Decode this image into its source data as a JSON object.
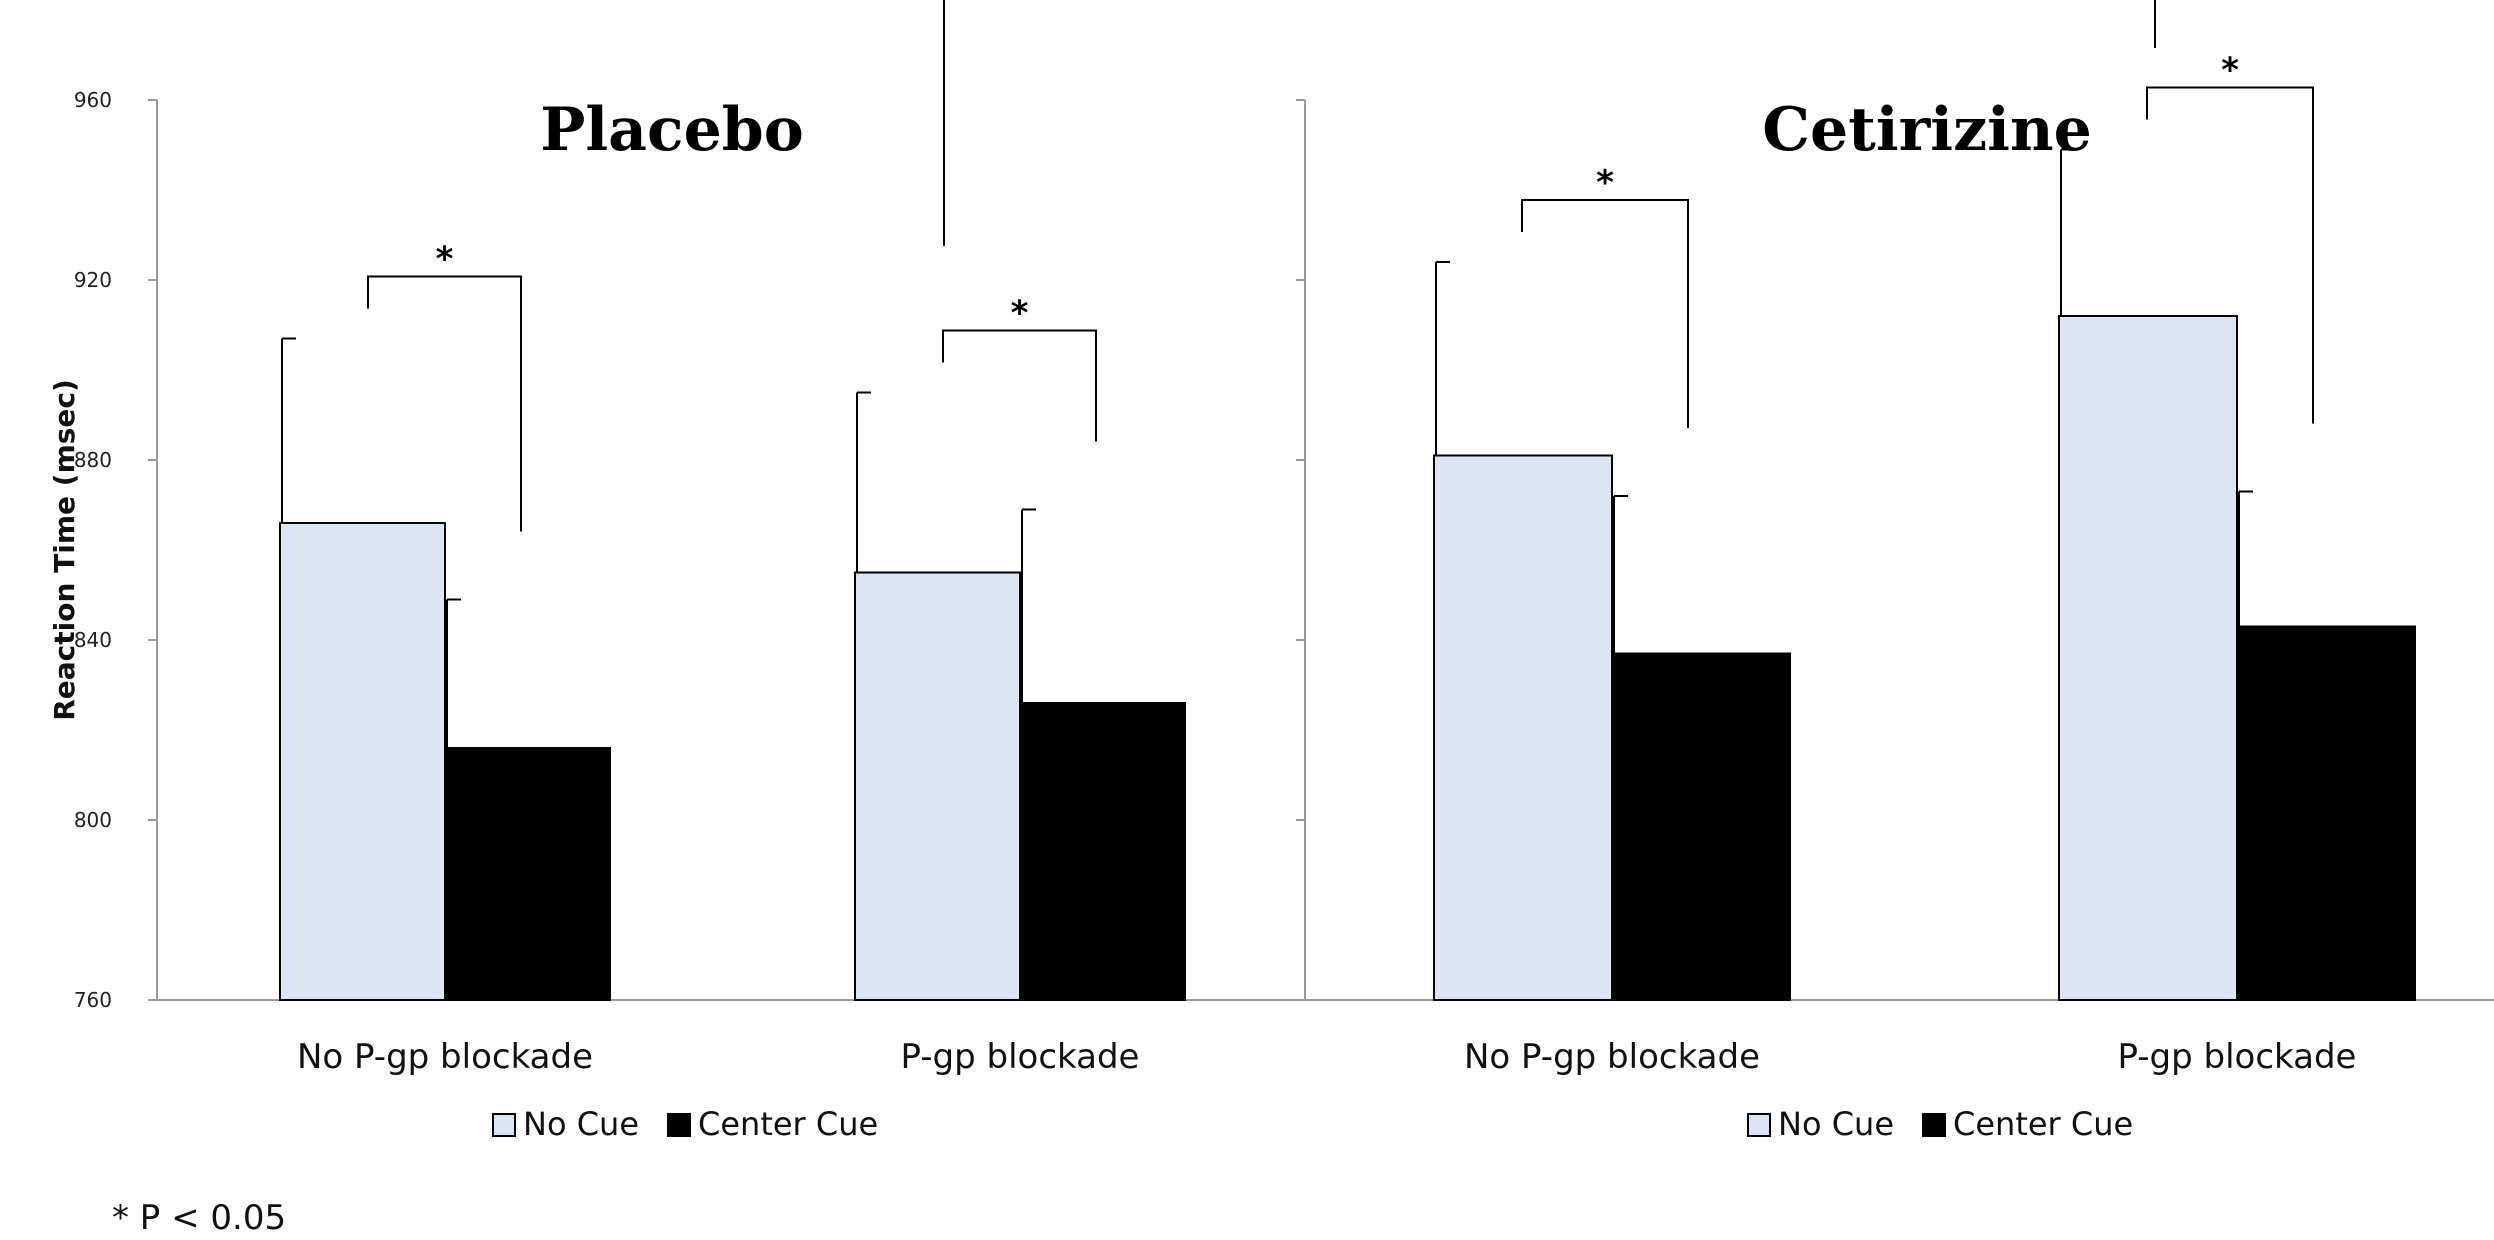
{
  "chart_data": {
    "type": "bar",
    "ylabel": "Reaction Time (msec)",
    "ylim": [
      760,
      960
    ],
    "yticks": [
      "760",
      "800",
      "840",
      "880",
      "920",
      "960"
    ],
    "grid": false,
    "colors": {
      "No Cue": "#dce6f2",
      "Center Cue": "#000000"
    },
    "panels": [
      {
        "title": "Placebo",
        "categories": [
          "No P-gp blockade",
          "P-gp blockade"
        ],
        "legend": [
          "No Cue",
          "Center Cue"
        ],
        "series": [
          {
            "name": "No Cue",
            "values": [
              866,
              855
            ],
            "error": [
              41,
              40
            ]
          },
          {
            "name": "Center Cue",
            "values": [
              816,
              826
            ],
            "error": [
              33,
              43
            ]
          }
        ],
        "significance": [
          "*",
          "*"
        ]
      },
      {
        "title": "Cetirizine",
        "categories": [
          "No P-gp blockade",
          "P-gp blockade"
        ],
        "legend": [
          "No Cue",
          "Center Cue"
        ],
        "series": [
          {
            "name": "No Cue",
            "values": [
              881,
              912
            ],
            "error": [
              43,
              37
            ]
          },
          {
            "name": "Center Cue",
            "values": [
              837,
              843
            ],
            "error": [
              35,
              30
            ]
          }
        ],
        "significance": [
          "*",
          "*"
        ]
      }
    ],
    "footnote": "* P < 0.05"
  }
}
